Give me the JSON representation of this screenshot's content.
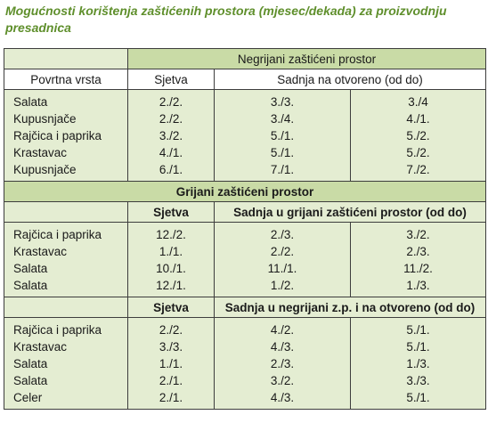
{
  "title": "Mogućnosti korištenja zaštićenih prostora (mjesec/dekada) za proizvodnju presadnica",
  "section1": {
    "heading": "Negrijani zaštićeni prostor",
    "col_vrsta": "Povrtna vrsta",
    "col_sjetva": "Sjetva",
    "col_sadnja": "Sadnja na otvoreno (od do)",
    "rows": [
      {
        "vrsta": "Salata",
        "sjetva": "2./2.",
        "od": "3./3.",
        "do": "3./4"
      },
      {
        "vrsta": "Kupusnjače",
        "sjetva": "2./2.",
        "od": "3./4.",
        "do": "4./1."
      },
      {
        "vrsta": "Rajčica i paprika",
        "sjetva": "3./2.",
        "od": "5./1.",
        "do": "5./2."
      },
      {
        "vrsta": "Krastavac",
        "sjetva": "4./1.",
        "od": "5./1.",
        "do": "5./2."
      },
      {
        "vrsta": "Kupusnjače",
        "sjetva": "6./1.",
        "od": "7./1.",
        "do": "7./2."
      }
    ]
  },
  "section2": {
    "heading": "Grijani zaštićeni prostor",
    "col_sjetva": "Sjetva",
    "col_sadnja": "Sadnja u grijani zaštićeni prostor (od do)",
    "rows": [
      {
        "vrsta": "Rajčica i paprika",
        "sjetva": "12./2.",
        "od": "2./3.",
        "do": "3./2."
      },
      {
        "vrsta": "Krastavac",
        "sjetva": "1./1.",
        "od": "2./2.",
        "do": "2./3."
      },
      {
        "vrsta": "Salata",
        "sjetva": "10./1.",
        "od": "11./1.",
        "do": "11./2."
      },
      {
        "vrsta": "Salata",
        "sjetva": "12./1.",
        "od": "1./2.",
        "do": "1./3."
      }
    ]
  },
  "section3": {
    "col_sjetva": "Sjetva",
    "col_sadnja": "Sadnja u negrijani z.p. i na otvoreno (od do)",
    "rows": [
      {
        "vrsta": "Rajčica i paprika",
        "sjetva": "2./2.",
        "od": "4./2.",
        "do": "5./1."
      },
      {
        "vrsta": "Krastavac",
        "sjetva": "3./3.",
        "od": "4./3.",
        "do": "5./1."
      },
      {
        "vrsta": "Salata",
        "sjetva": "1./1.",
        "od": "2./3.",
        "do": "1./3."
      },
      {
        "vrsta": "Salata",
        "sjetva": "2./1.",
        "od": "3./2.",
        "do": "3./3."
      },
      {
        "vrsta": "Celer",
        "sjetva": "2./1.",
        "od": "4./3.",
        "do": "5./1."
      }
    ]
  }
}
